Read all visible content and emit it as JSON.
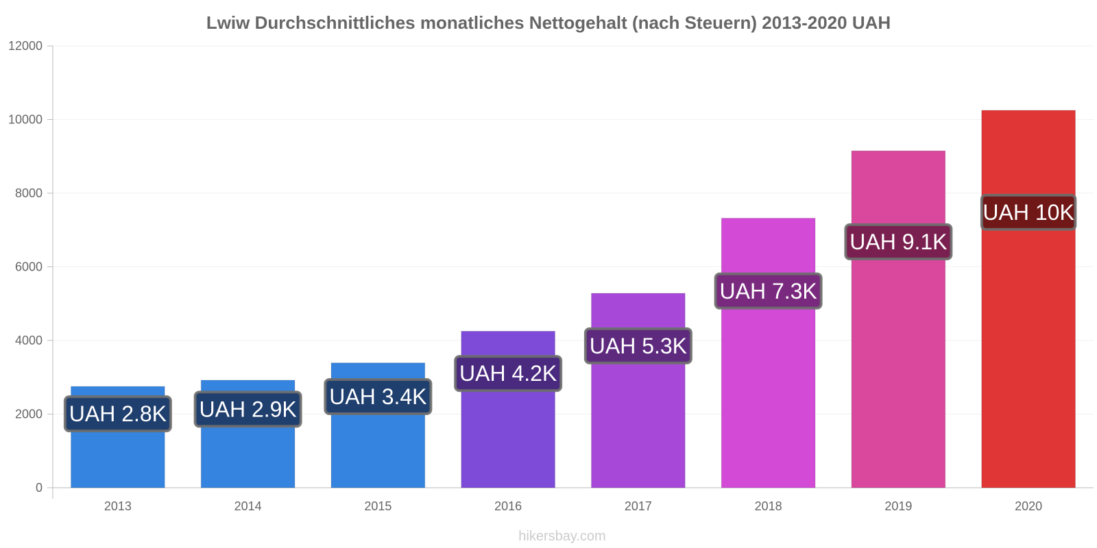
{
  "chart_data": {
    "type": "bar",
    "title": "Lwiw Durchschnittliches monatliches Nettogehalt (nach Steuern) 2013-2020 UAH",
    "xlabel": "",
    "ylabel": "",
    "categories": [
      "2013",
      "2014",
      "2015",
      "2016",
      "2017",
      "2018",
      "2019",
      "2020"
    ],
    "values": [
      2750,
      2920,
      3390,
      4250,
      5280,
      7320,
      9150,
      10250
    ],
    "data_labels": [
      "UAH 2.8K",
      "UAH 2.9K",
      "UAH 3.4K",
      "UAH 4.2K",
      "UAH 5.3K",
      "UAH 7.3K",
      "UAH 9.1K",
      "UAH 10K"
    ],
    "bar_colors": [
      "#3584e0",
      "#3584e0",
      "#3584e0",
      "#7e4bd9",
      "#a748d9",
      "#d24ad6",
      "#d9489c",
      "#e03636"
    ],
    "label_colors": [
      "#1f3f6e",
      "#1f3f6e",
      "#1f3f6e",
      "#4a2a7e",
      "#5e2a7e",
      "#7a2a7e",
      "#7a2050",
      "#701818"
    ],
    "yticks": [
      "0",
      "2000",
      "4000",
      "6000",
      "8000",
      "10000",
      "12000"
    ],
    "ylim": [
      0,
      12000
    ],
    "grid": true,
    "watermark": "hikersbay.com"
  }
}
